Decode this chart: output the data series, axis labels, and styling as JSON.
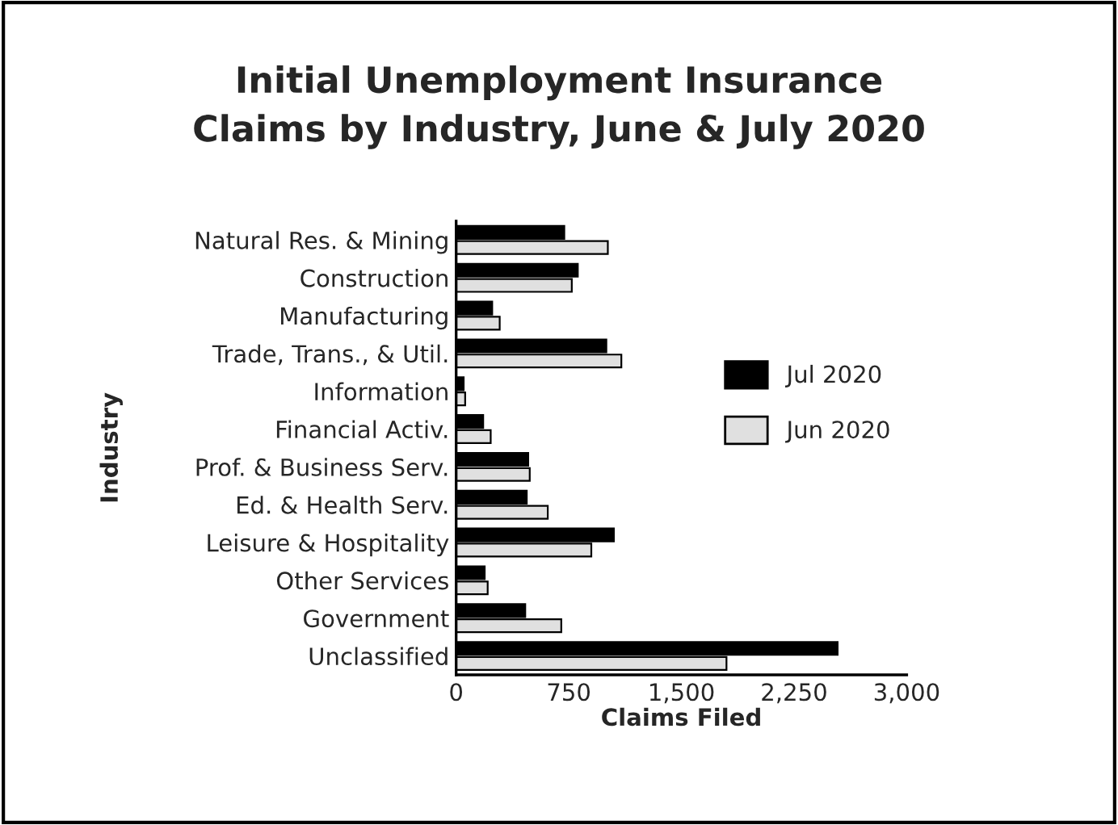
{
  "chart_data": {
    "type": "bar",
    "orientation": "horizontal",
    "title": "Initial Unemployment Insurance\nClaims by Industry, June & July 2020",
    "xlabel": "Claims Filed",
    "ylabel": "Industry",
    "categories": [
      "Natural Res. & Mining",
      "Construction",
      "Manufacturing",
      "Trade, Trans., & Util.",
      "Information",
      "Financial Activ.",
      "Prof. & Business Serv.",
      "Ed. & Health Serv.",
      "Leisure & Hospitality",
      "Other Services",
      "Government",
      "Unclassified"
    ],
    "series": [
      {
        "name": "Jul 2020",
        "color": "#000000",
        "values": [
          720,
          810,
          240,
          1000,
          50,
          180,
          480,
          470,
          1050,
          190,
          460,
          2540
        ]
      },
      {
        "name": "Jun 2020",
        "color": "#e0e0e0",
        "values": [
          1010,
          770,
          290,
          1100,
          60,
          230,
          490,
          610,
          900,
          210,
          700,
          1800
        ]
      }
    ],
    "xlim": [
      0,
      3000
    ],
    "xticks": [
      0,
      {
        "value": 750,
        "label": "750"
      },
      {
        "value": 1500,
        "label": "1,500"
      },
      {
        "value": 2250,
        "label": "2,250"
      },
      {
        "value": 3000,
        "label": "3,000"
      }
    ],
    "legend": "right",
    "grid": false
  }
}
